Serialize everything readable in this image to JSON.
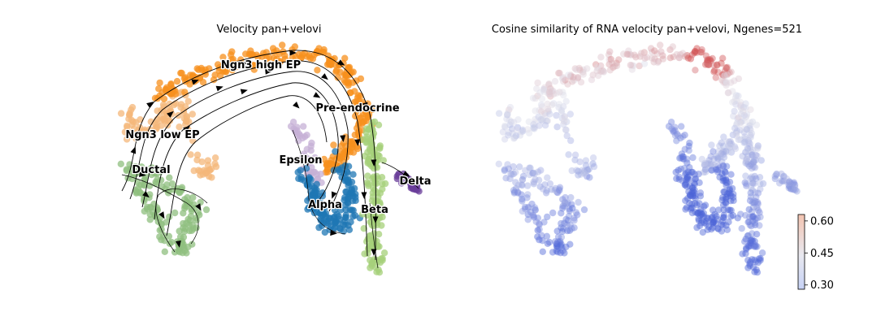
{
  "chart_data": [
    {
      "type": "scatter",
      "title": "Velocity pan+velovi",
      "xlabel": "",
      "ylabel": "",
      "grid": false,
      "clusters": [
        {
          "name": "Ngn3 high EP",
          "color": "#f7901e"
        },
        {
          "name": "Pre-endocrine",
          "color": "#f7901e"
        },
        {
          "name": "Ngn3 low EP",
          "color": "#f4b77a"
        },
        {
          "name": "Ductal",
          "color": "#8fbf7f"
        },
        {
          "name": "Epsilon",
          "color": "#c5b0d5"
        },
        {
          "name": "Alpha",
          "color": "#1f77b4"
        },
        {
          "name": "Beta",
          "color": "#a6d07a"
        },
        {
          "name": "Delta",
          "color": "#6a3d9a"
        }
      ],
      "overlay": "velocity streamlines with arrows"
    },
    {
      "type": "scatter",
      "title": "Cosine similarity of RNA velocity pan+velovi, Ngenes=521",
      "xlabel": "",
      "ylabel": "",
      "grid": false,
      "colormap": "coolwarm",
      "colorbar": {
        "ticks": [
          "0.30",
          "0.45",
          "0.60"
        ],
        "range": [
          0.28,
          0.63
        ],
        "low_color": "#4b63d8",
        "high_color": "#cf3a3a"
      }
    }
  ]
}
